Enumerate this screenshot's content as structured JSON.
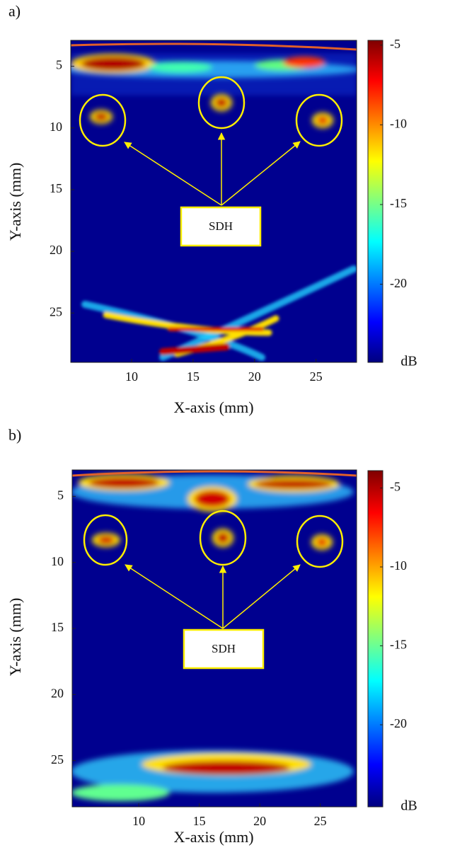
{
  "chart_data": [
    {
      "type": "heatmap",
      "panel_label": "a)",
      "annotation": "SDH",
      "xlabel": "X-axis (mm)",
      "ylabel": "Y-axis (mm)",
      "colorbar_label": "dB",
      "xlim": [
        5.05,
        28.3
      ],
      "ylim": [
        2.9,
        29
      ],
      "y_inverted": true,
      "xticks": [
        10,
        15,
        20,
        25
      ],
      "yticks": [
        5,
        10,
        15,
        20,
        25
      ],
      "colormap": "jet",
      "clim": [
        -24.9,
        -4.7
      ],
      "cticks": [
        -5,
        -10,
        -15,
        -20
      ]
    },
    {
      "type": "heatmap",
      "panel_label": "b)",
      "annotation": "SDH",
      "xlabel": "X-axis (mm)",
      "ylabel": "Y-axis (mm)",
      "colorbar_label": "dB",
      "xlim": [
        4.5,
        28
      ],
      "ylim": [
        3,
        28.5
      ],
      "y_inverted": true,
      "xticks": [
        10,
        15,
        20,
        25
      ],
      "yticks": [
        5,
        10,
        15,
        20,
        25
      ],
      "colormap": "jet",
      "clim": [
        -25.2,
        -3.9
      ],
      "cticks": [
        -5,
        -10,
        -15,
        -20
      ]
    }
  ]
}
